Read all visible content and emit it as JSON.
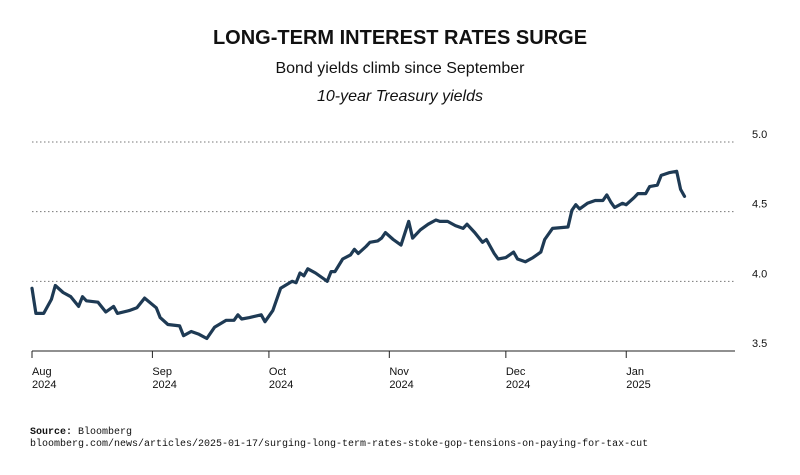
{
  "chart_data": {
    "type": "line",
    "title": "LONG-TERM INTEREST RATES SURGE",
    "subtitle": "Bond yields climb since September",
    "description": "10-year Treasury yields",
    "source": "Source: Bloomberg",
    "url": "bloomberg.com/news/articles/2025-01-17/surging-long-term-rates-stoke-gop-tensions-on-paying-for-tax-cut",
    "x": [
      0,
      1,
      3,
      5,
      6,
      8,
      10,
      12,
      13,
      14,
      17,
      19,
      21,
      22,
      25,
      27,
      29,
      32,
      33,
      35,
      38,
      39,
      41,
      43,
      45,
      47,
      50,
      52,
      53,
      54,
      56,
      59,
      60,
      62,
      64,
      67,
      68,
      69,
      70,
      71,
      73,
      75,
      76,
      77,
      78,
      80,
      82,
      83,
      84,
      86,
      87,
      89,
      90,
      91,
      93,
      95,
      97,
      98,
      100,
      102,
      104,
      105,
      107,
      109,
      111,
      112,
      114,
      116,
      117,
      119,
      120,
      122,
      124,
      125,
      127,
      129,
      131,
      132,
      134,
      138,
      139,
      140,
      141,
      143,
      145,
      147,
      148,
      149,
      150,
      152,
      153,
      155,
      156,
      158,
      159,
      161,
      162,
      164,
      166,
      167,
      168
    ],
    "series": [
      {
        "name": "10-year Treasury yield",
        "color": "#1e3a54",
        "values": [
          3.95,
          3.77,
          3.77,
          3.87,
          3.97,
          3.92,
          3.89,
          3.82,
          3.89,
          3.86,
          3.85,
          3.78,
          3.82,
          3.77,
          3.79,
          3.81,
          3.88,
          3.81,
          3.74,
          3.69,
          3.68,
          3.61,
          3.64,
          3.62,
          3.59,
          3.67,
          3.72,
          3.72,
          3.76,
          3.73,
          3.74,
          3.76,
          3.71,
          3.79,
          3.95,
          4.0,
          3.99,
          4.06,
          4.04,
          4.09,
          4.06,
          4.02,
          4.0,
          4.07,
          4.07,
          4.16,
          4.19,
          4.23,
          4.2,
          4.25,
          4.28,
          4.29,
          4.31,
          4.35,
          4.3,
          4.26,
          4.43,
          4.31,
          4.37,
          4.41,
          4.44,
          4.43,
          4.43,
          4.4,
          4.38,
          4.41,
          4.35,
          4.28,
          4.3,
          4.2,
          4.16,
          4.17,
          4.21,
          4.16,
          4.14,
          4.17,
          4.21,
          4.3,
          4.38,
          4.39,
          4.51,
          4.55,
          4.52,
          4.56,
          4.58,
          4.58,
          4.62,
          4.57,
          4.53,
          4.56,
          4.55,
          4.6,
          4.63,
          4.63,
          4.68,
          4.69,
          4.76,
          4.78,
          4.79,
          4.66,
          4.61
        ]
      }
    ],
    "xlim": [
      0,
      181
    ],
    "xticks": [
      {
        "value": 0,
        "label": "Aug 2024"
      },
      {
        "value": 31,
        "label": "Sep 2024"
      },
      {
        "value": 61,
        "label": "Oct 2024"
      },
      {
        "value": 92,
        "label": "Nov 2024"
      },
      {
        "value": 122,
        "label": "Dec 2024"
      },
      {
        "value": 153,
        "label": "Jan 2025"
      }
    ],
    "ylim": [
      3.5,
      5.0
    ],
    "yticks": [
      3.5,
      {
        "value": 4,
        "label": "4.0"
      },
      4.5,
      {
        "value": 5,
        "label": "5.0"
      }
    ],
    "grid": true
  }
}
